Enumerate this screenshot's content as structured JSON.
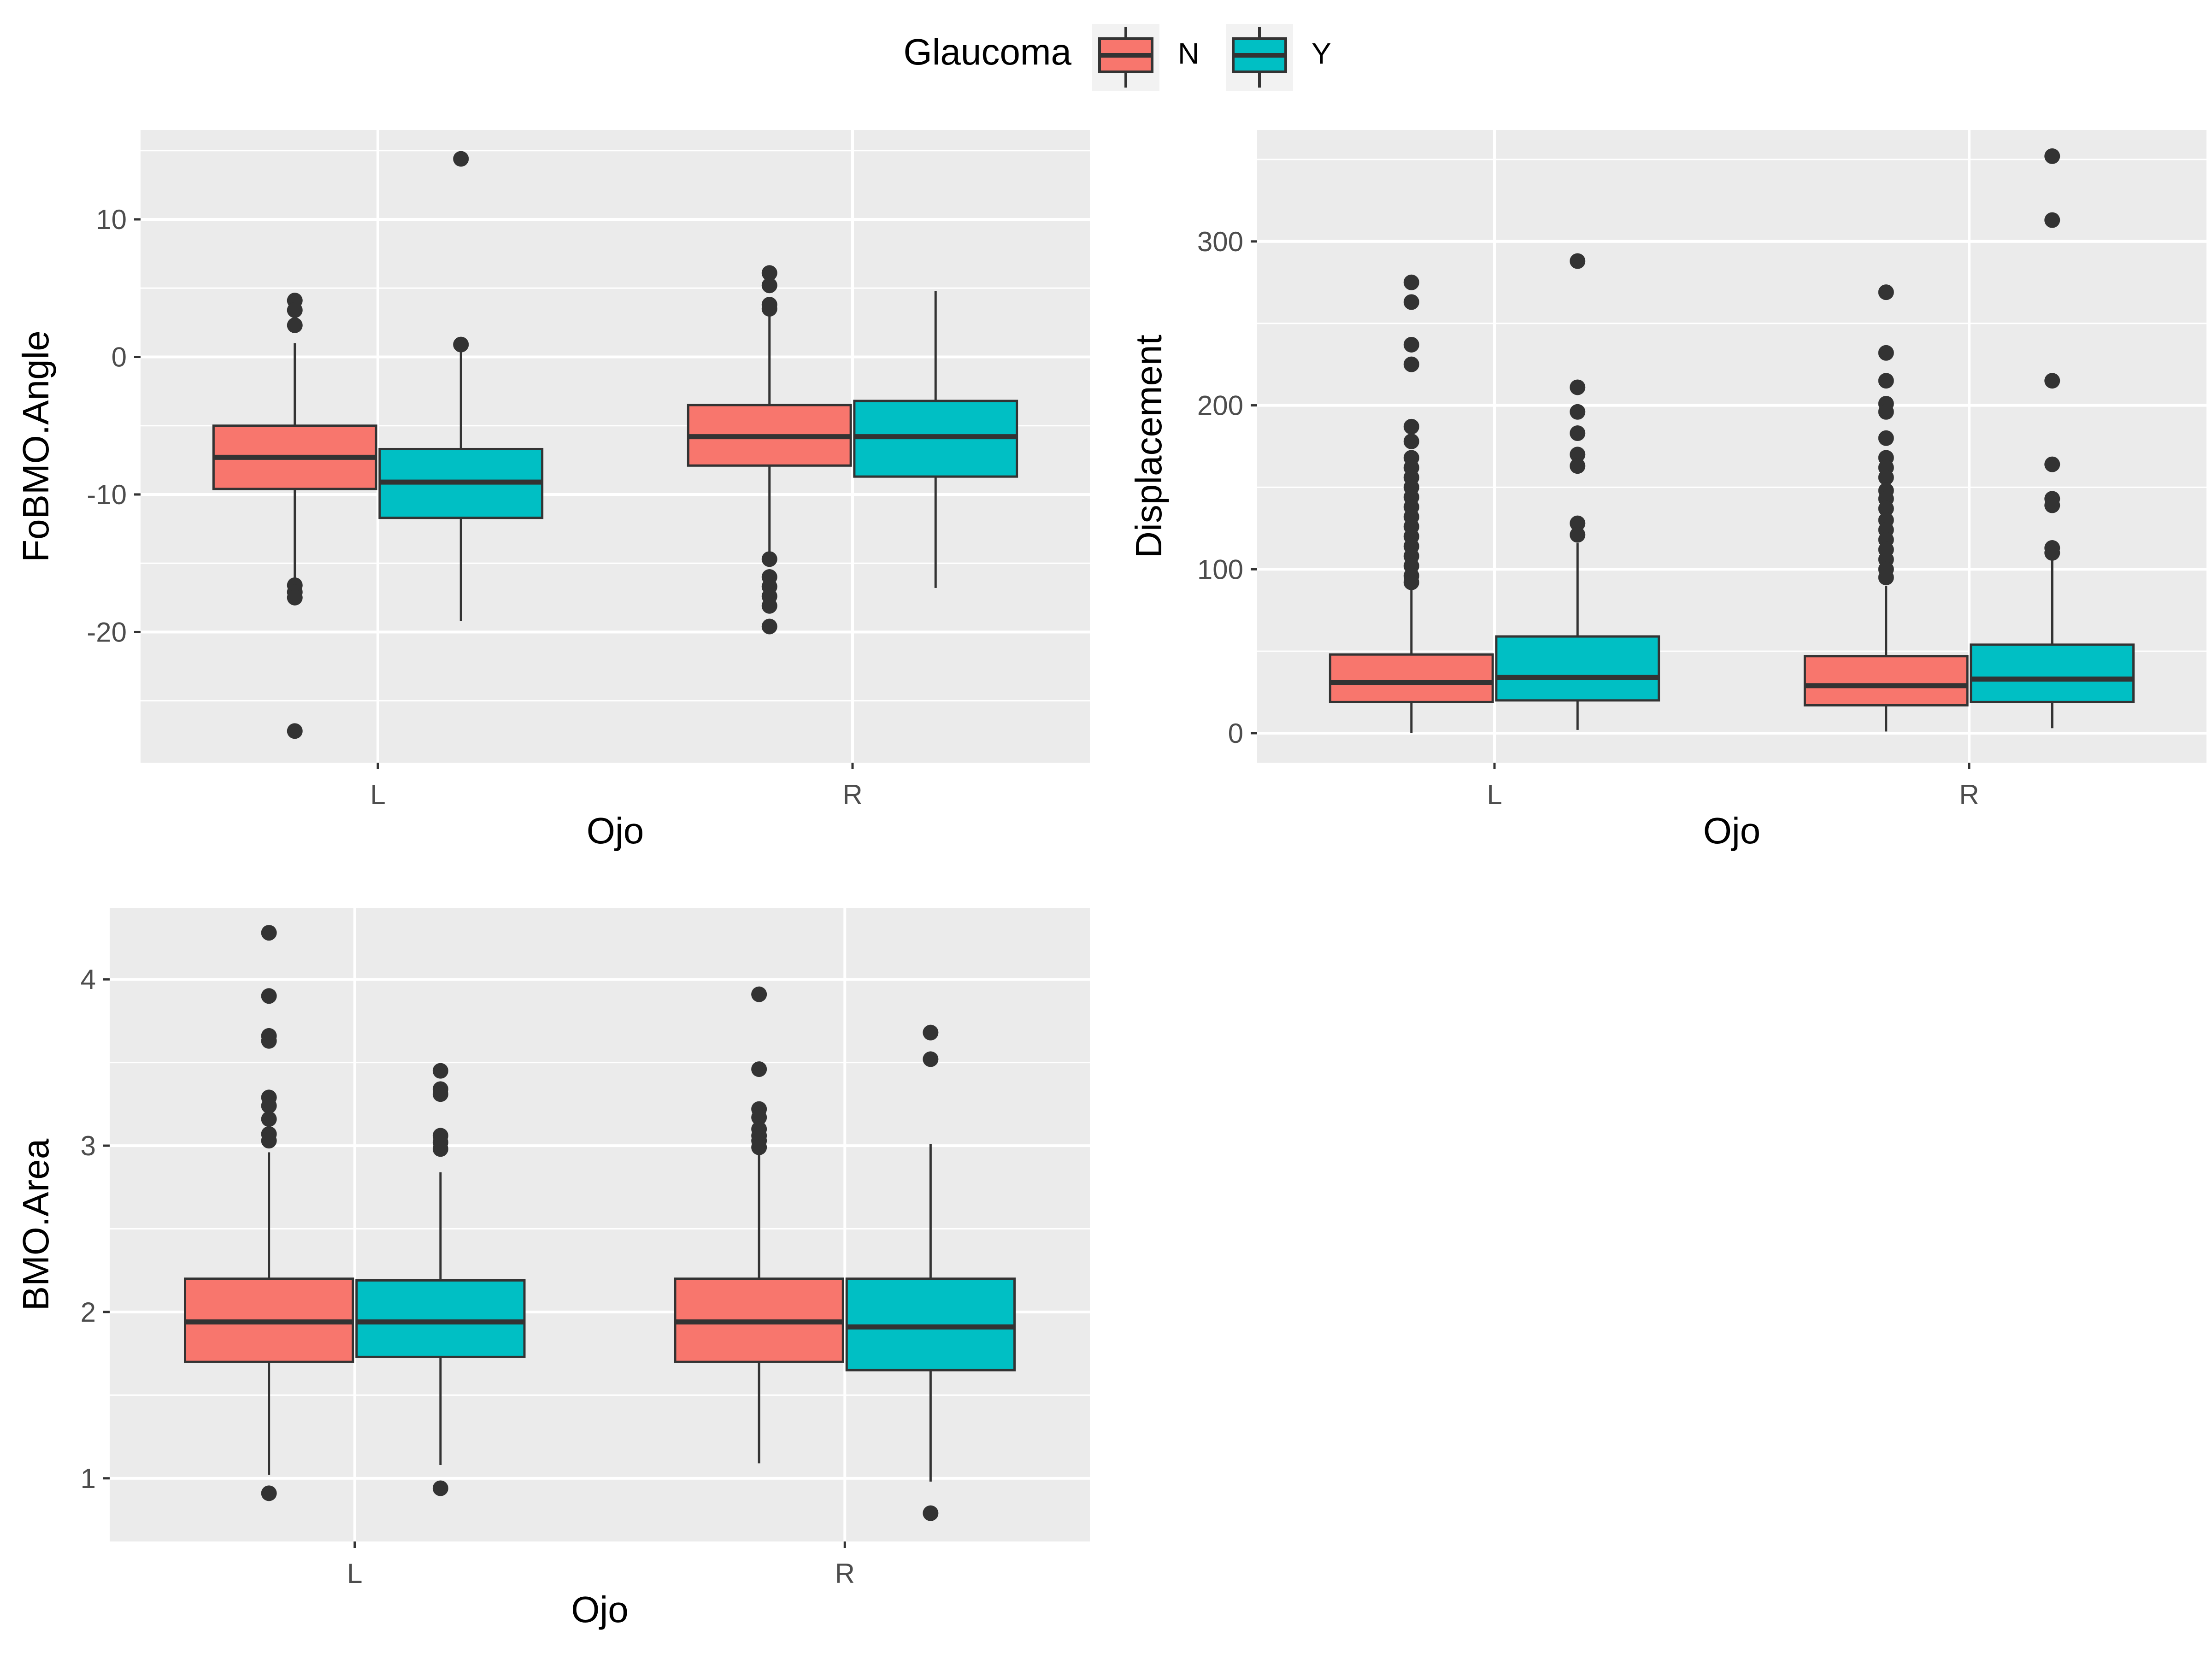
{
  "legend": {
    "title": "Glaucoma",
    "entries": [
      {
        "label": "N",
        "color": "#F8766D"
      },
      {
        "label": "Y",
        "color": "#00BFC4"
      }
    ]
  },
  "chart_data": [
    {
      "type": "boxplot",
      "xlabel": "Ojo",
      "ylabel": "FoBMO.Angle",
      "categories": [
        "L",
        "R"
      ],
      "ylim": [
        -29.5,
        16.5
      ],
      "yticks": [
        10,
        0,
        -10,
        -20
      ],
      "ytick_labels": [
        "10",
        "0",
        "-10",
        "-20"
      ],
      "ygrid_minor": [
        15,
        5,
        -5,
        -15,
        -25
      ],
      "groups": [
        {
          "category": "L",
          "series": "N",
          "q1": -9.6,
          "median": -7.3,
          "q3": -5.0,
          "whisker_low": -16.3,
          "whisker_high": 1.0,
          "outliers": [
            4.1,
            3.4,
            2.3,
            -16.6,
            -17.1,
            -17.5,
            -27.2
          ]
        },
        {
          "category": "L",
          "series": "Y",
          "q1": -11.7,
          "median": -9.1,
          "q3": -6.7,
          "whisker_low": -19.2,
          "whisker_high": 0.7,
          "outliers": [
            14.4,
            0.9
          ]
        },
        {
          "category": "R",
          "series": "N",
          "q1": -7.9,
          "median": -5.8,
          "q3": -3.5,
          "whisker_low": -14.3,
          "whisker_high": 3.0,
          "outliers": [
            6.1,
            5.2,
            3.8,
            3.5,
            -14.7,
            -16.0,
            -16.7,
            -17.4,
            -18.1,
            -19.6
          ]
        },
        {
          "category": "R",
          "series": "Y",
          "q1": -8.7,
          "median": -5.8,
          "q3": -3.2,
          "whisker_low": -16.8,
          "whisker_high": 4.8,
          "outliers": []
        }
      ]
    },
    {
      "type": "boxplot",
      "xlabel": "Ojo",
      "ylabel": "Displacement",
      "categories": [
        "L",
        "R"
      ],
      "ylim": [
        -18,
        368
      ],
      "yticks": [
        300,
        200,
        100,
        0
      ],
      "ytick_labels": [
        "300",
        "200",
        "100",
        "0"
      ],
      "ygrid_minor": [
        350,
        250,
        150,
        50
      ],
      "groups": [
        {
          "category": "L",
          "series": "N",
          "q1": 19,
          "median": 31,
          "q3": 48,
          "whisker_low": 0,
          "whisker_high": 90,
          "outliers": [
            275,
            263,
            237,
            225,
            187,
            178,
            168,
            162,
            156,
            150,
            144,
            138,
            132,
            126,
            120,
            114,
            108,
            102,
            96,
            92
          ]
        },
        {
          "category": "L",
          "series": "Y",
          "q1": 20,
          "median": 34,
          "q3": 59,
          "whisker_low": 2,
          "whisker_high": 116,
          "outliers": [
            288,
            211,
            196,
            183,
            170,
            163,
            128,
            121
          ]
        },
        {
          "category": "R",
          "series": "N",
          "q1": 17,
          "median": 29,
          "q3": 47,
          "whisker_low": 1,
          "whisker_high": 90,
          "outliers": [
            269,
            232,
            215,
            201,
            196,
            180,
            168,
            162,
            156,
            148,
            143,
            137,
            130,
            124,
            118,
            112,
            106,
            100,
            95
          ]
        },
        {
          "category": "R",
          "series": "Y",
          "q1": 19,
          "median": 33,
          "q3": 54,
          "whisker_low": 3,
          "whisker_high": 108,
          "outliers": [
            352,
            313,
            215,
            164,
            143,
            139,
            113,
            110
          ]
        }
      ]
    },
    {
      "type": "boxplot",
      "xlabel": "Ojo",
      "ylabel": "BMO.Area",
      "categories": [
        "L",
        "R"
      ],
      "ylim": [
        0.62,
        4.43
      ],
      "yticks": [
        4,
        3,
        2,
        1
      ],
      "ytick_labels": [
        "4",
        "3",
        "2",
        "1"
      ],
      "ygrid_minor": [
        3.5,
        2.5,
        1.5
      ],
      "groups": [
        {
          "category": "L",
          "series": "N",
          "q1": 1.7,
          "median": 1.94,
          "q3": 2.2,
          "whisker_low": 1.02,
          "whisker_high": 2.96,
          "outliers": [
            4.28,
            3.9,
            3.66,
            3.63,
            3.29,
            3.24,
            3.16,
            3.07,
            3.03,
            0.91
          ]
        },
        {
          "category": "L",
          "series": "Y",
          "q1": 1.73,
          "median": 1.94,
          "q3": 2.19,
          "whisker_low": 1.08,
          "whisker_high": 2.84,
          "outliers": [
            3.45,
            3.34,
            3.31,
            3.06,
            3.02,
            2.98,
            0.94
          ]
        },
        {
          "category": "R",
          "series": "N",
          "q1": 1.7,
          "median": 1.94,
          "q3": 2.2,
          "whisker_low": 1.09,
          "whisker_high": 2.95,
          "outliers": [
            3.91,
            3.46,
            3.22,
            3.17,
            3.1,
            3.06,
            3.03,
            2.99
          ]
        },
        {
          "category": "R",
          "series": "Y",
          "q1": 1.65,
          "median": 1.91,
          "q3": 2.2,
          "whisker_low": 0.98,
          "whisker_high": 3.01,
          "outliers": [
            3.68,
            3.52,
            0.79
          ]
        }
      ]
    }
  ]
}
